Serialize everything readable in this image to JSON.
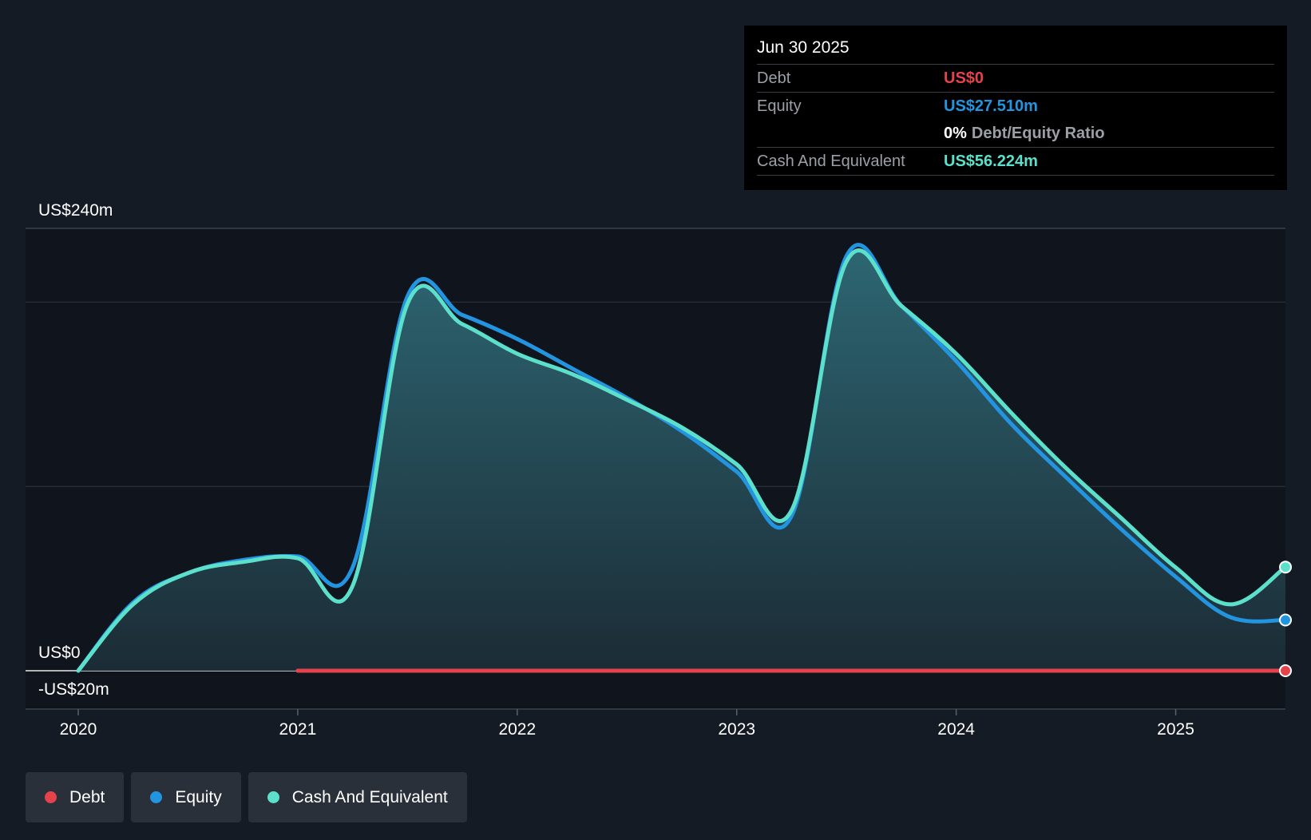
{
  "chart_data": {
    "type": "area",
    "x_ticks": [
      "2020",
      "2021",
      "2022",
      "2023",
      "2024",
      "2025"
    ],
    "y_labels": [
      {
        "value": 240,
        "label": "US$240m"
      },
      {
        "value": 0,
        "label": "US$0"
      },
      {
        "value": -20,
        "label": "-US$20m"
      }
    ],
    "ylim": [
      -20,
      240
    ],
    "xlim": [
      2019.76,
      2025.5
    ],
    "grid_values": [
      200,
      100
    ],
    "series": [
      {
        "name": "Debt",
        "color": "#e5434c",
        "points": [
          [
            2021.0,
            0
          ],
          [
            2025.5,
            0
          ]
        ]
      },
      {
        "name": "Equity",
        "color": "#2394df",
        "points": [
          [
            2020.0,
            0
          ],
          [
            2020.25,
            37
          ],
          [
            2020.5,
            53
          ],
          [
            2020.75,
            60
          ],
          [
            2021.0,
            62
          ],
          [
            2021.25,
            56
          ],
          [
            2021.5,
            203
          ],
          [
            2021.75,
            193
          ],
          [
            2022.0,
            180
          ],
          [
            2022.25,
            164
          ],
          [
            2022.5,
            148
          ],
          [
            2022.75,
            130
          ],
          [
            2023.0,
            108
          ],
          [
            2023.25,
            84
          ],
          [
            2023.5,
            225
          ],
          [
            2023.75,
            198
          ],
          [
            2024.0,
            168
          ],
          [
            2024.25,
            134
          ],
          [
            2024.5,
            105
          ],
          [
            2024.75,
            77
          ],
          [
            2025.0,
            51
          ],
          [
            2025.25,
            29
          ],
          [
            2025.5,
            27.51
          ]
        ]
      },
      {
        "name": "Cash And Equivalent",
        "color": "#5ce0cb",
        "points": [
          [
            2020.0,
            0
          ],
          [
            2020.25,
            36
          ],
          [
            2020.5,
            53
          ],
          [
            2020.75,
            59
          ],
          [
            2021.0,
            61
          ],
          [
            2021.25,
            46
          ],
          [
            2021.5,
            199
          ],
          [
            2021.75,
            188
          ],
          [
            2022.0,
            172
          ],
          [
            2022.25,
            161
          ],
          [
            2022.5,
            147
          ],
          [
            2022.75,
            132
          ],
          [
            2023.0,
            112
          ],
          [
            2023.25,
            87
          ],
          [
            2023.5,
            222
          ],
          [
            2023.75,
            198
          ],
          [
            2024.0,
            172
          ],
          [
            2024.25,
            140
          ],
          [
            2024.5,
            110
          ],
          [
            2024.75,
            83
          ],
          [
            2025.0,
            56
          ],
          [
            2025.25,
            36
          ],
          [
            2025.5,
            56.224
          ]
        ]
      }
    ],
    "legend_position": "bottom-left",
    "fill_series": "Cash And Equivalent"
  },
  "tooltip": {
    "date": "Jun 30 2025",
    "debt_label": "Debt",
    "debt_value": "US$0",
    "equity_label": "Equity",
    "equity_value": "US$27.510m",
    "ratio_value": "0%",
    "ratio_label": "Debt/Equity Ratio",
    "cash_label": "Cash And Equivalent",
    "cash_value": "US$56.224m"
  },
  "legend": [
    {
      "name": "Debt",
      "color": "#e5434c"
    },
    {
      "name": "Equity",
      "color": "#2394df"
    },
    {
      "name": "Cash And Equivalent",
      "color": "#5ce0cb"
    }
  ],
  "colors": {
    "background": "#151b24",
    "debt": "#e5434c",
    "equity": "#2394df",
    "cash": "#5ce0cb"
  }
}
